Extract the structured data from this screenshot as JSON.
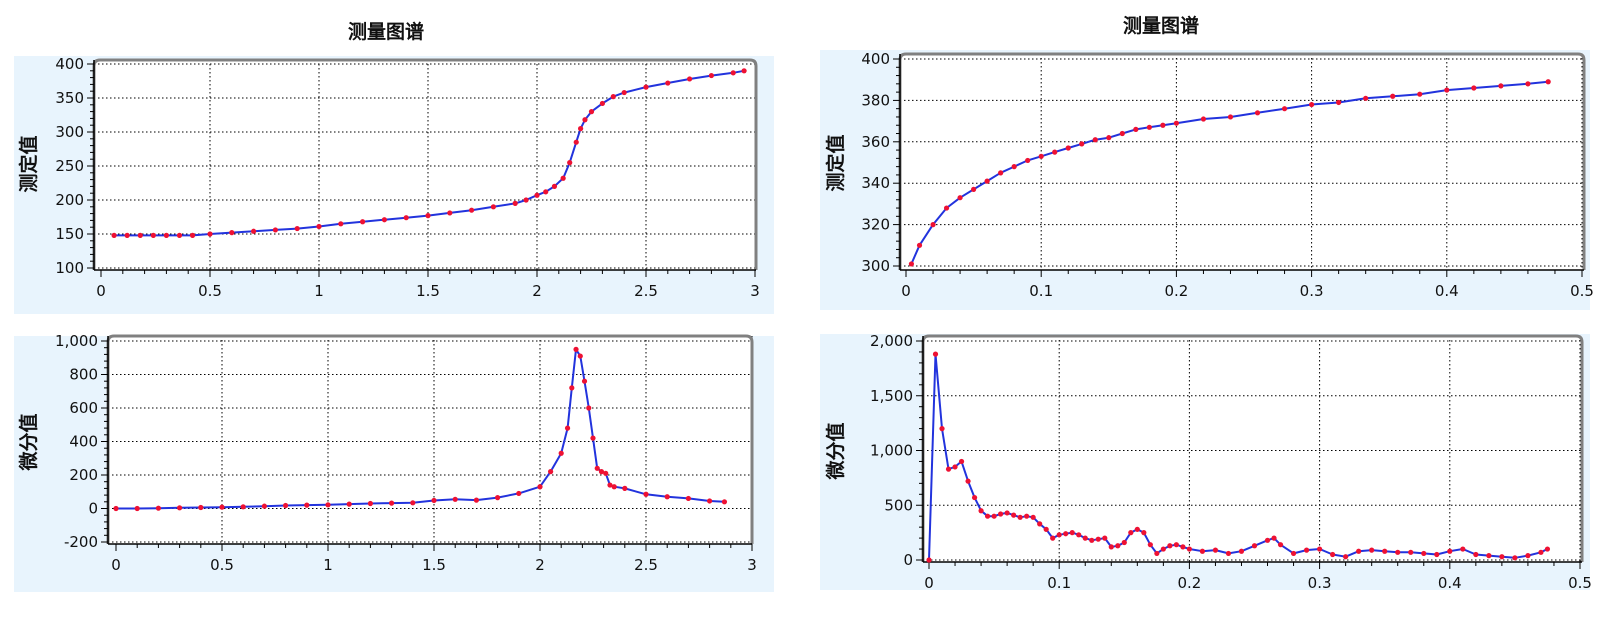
{
  "titles": {
    "left": "测量图谱",
    "right": "测量图谱"
  },
  "colors": {
    "line": "#2233dd",
    "marker": "#ee1133",
    "band": "#e8f4fd",
    "frame": "#808080",
    "grid": "#000000"
  },
  "chart_data": [
    {
      "id": "left-top",
      "type": "line",
      "ylabel": "测定值",
      "xlim": [
        0,
        3
      ],
      "ylim": [
        100,
        400
      ],
      "xticks": [
        0,
        0.5,
        1,
        1.5,
        2,
        2.5,
        3
      ],
      "xtick_labels": [
        "0",
        "0.5",
        "1",
        "1.5",
        "2",
        "2.5",
        "3"
      ],
      "yticks": [
        100,
        150,
        200,
        250,
        300,
        350,
        400
      ],
      "ytick_labels": [
        "100",
        "150",
        "200",
        "250",
        "300",
        "350",
        "400"
      ],
      "grid": true,
      "series": [
        {
          "x": [
            0.06,
            0.12,
            0.18,
            0.24,
            0.3,
            0.36,
            0.42,
            0.5,
            0.6,
            0.7,
            0.8,
            0.9,
            1.0,
            1.1,
            1.2,
            1.3,
            1.4,
            1.5,
            1.6,
            1.7,
            1.8,
            1.9,
            1.95,
            2.0,
            2.04,
            2.08,
            2.12,
            2.15,
            2.18,
            2.2,
            2.22,
            2.25,
            2.3,
            2.35,
            2.4,
            2.5,
            2.6,
            2.7,
            2.8,
            2.9,
            2.95
          ],
          "y": [
            148,
            148,
            148,
            148,
            148,
            148,
            148,
            150,
            152,
            154,
            156,
            158,
            161,
            165,
            168,
            171,
            174,
            177,
            181,
            185,
            190,
            195,
            200,
            207,
            212,
            220,
            232,
            255,
            285,
            305,
            318,
            330,
            342,
            352,
            358,
            366,
            372,
            378,
            383,
            387,
            390
          ]
        }
      ]
    },
    {
      "id": "left-bottom",
      "type": "line",
      "ylabel": "微分值",
      "xlim": [
        0,
        3
      ],
      "ylim": [
        -200,
        1000
      ],
      "xticks": [
        0,
        0.5,
        1,
        1.5,
        2,
        2.5,
        3
      ],
      "xtick_labels": [
        "0",
        "0.5",
        "1",
        "1.5",
        "2",
        "2.5",
        "3"
      ],
      "yticks": [
        -200,
        0,
        200,
        400,
        600,
        800,
        1000
      ],
      "ytick_labels": [
        "-200",
        "0",
        "200",
        "400",
        "600",
        "800",
        "1,000"
      ],
      "grid": true,
      "series": [
        {
          "x": [
            0.0,
            0.1,
            0.2,
            0.3,
            0.4,
            0.5,
            0.6,
            0.7,
            0.8,
            0.9,
            1.0,
            1.1,
            1.2,
            1.3,
            1.4,
            1.5,
            1.6,
            1.7,
            1.8,
            1.9,
            2.0,
            2.05,
            2.1,
            2.13,
            2.15,
            2.17,
            2.19,
            2.21,
            2.23,
            2.25,
            2.27,
            2.29,
            2.31,
            2.33,
            2.35,
            2.4,
            2.5,
            2.6,
            2.7,
            2.8,
            2.87
          ],
          "y": [
            0,
            0,
            2,
            4,
            6,
            8,
            10,
            14,
            18,
            20,
            22,
            26,
            30,
            32,
            34,
            48,
            55,
            50,
            65,
            90,
            130,
            220,
            330,
            480,
            720,
            950,
            910,
            760,
            600,
            420,
            240,
            220,
            210,
            140,
            130,
            120,
            85,
            70,
            60,
            45,
            40
          ]
        }
      ]
    },
    {
      "id": "right-top",
      "type": "line",
      "ylabel": "测定值",
      "xlim": [
        0,
        0.5
      ],
      "ylim": [
        300,
        400
      ],
      "xticks": [
        0,
        0.1,
        0.2,
        0.3,
        0.4,
        0.5
      ],
      "xtick_labels": [
        "0",
        "0.1",
        "0.2",
        "0.3",
        "0.4",
        "0.5"
      ],
      "yticks": [
        300,
        320,
        340,
        360,
        380,
        400
      ],
      "ytick_labels": [
        "300",
        "320",
        "340",
        "360",
        "380",
        "400"
      ],
      "grid": true,
      "series": [
        {
          "x": [
            0.004,
            0.01,
            0.02,
            0.03,
            0.04,
            0.05,
            0.06,
            0.07,
            0.08,
            0.09,
            0.1,
            0.11,
            0.12,
            0.13,
            0.14,
            0.15,
            0.16,
            0.17,
            0.18,
            0.19,
            0.2,
            0.22,
            0.24,
            0.26,
            0.28,
            0.3,
            0.32,
            0.34,
            0.36,
            0.38,
            0.4,
            0.42,
            0.44,
            0.46,
            0.475
          ],
          "y": [
            301,
            310,
            320,
            328,
            333,
            337,
            341,
            345,
            348,
            351,
            353,
            355,
            357,
            359,
            361,
            362,
            364,
            366,
            367,
            368,
            369,
            371,
            372,
            374,
            376,
            378,
            379,
            381,
            382,
            383,
            385,
            386,
            387,
            388,
            389
          ]
        }
      ]
    },
    {
      "id": "right-bottom",
      "type": "line",
      "ylabel": "微分值",
      "xlim": [
        0,
        0.5
      ],
      "ylim": [
        0,
        2000
      ],
      "xticks": [
        0,
        0.1,
        0.2,
        0.3,
        0.4,
        0.5
      ],
      "xtick_labels": [
        "0",
        "0.1",
        "0.2",
        "0.3",
        "0.4",
        "0.5"
      ],
      "yticks": [
        0,
        500,
        1000,
        1500,
        2000
      ],
      "ytick_labels": [
        "0",
        "500",
        "1,000",
        "1,500",
        "2,000"
      ],
      "grid": true,
      "series": [
        {
          "x": [
            0.0,
            0.005,
            0.01,
            0.015,
            0.02,
            0.025,
            0.03,
            0.035,
            0.04,
            0.045,
            0.05,
            0.055,
            0.06,
            0.065,
            0.07,
            0.075,
            0.08,
            0.085,
            0.09,
            0.095,
            0.1,
            0.105,
            0.11,
            0.115,
            0.12,
            0.125,
            0.13,
            0.135,
            0.14,
            0.145,
            0.15,
            0.155,
            0.16,
            0.165,
            0.17,
            0.175,
            0.18,
            0.185,
            0.19,
            0.195,
            0.2,
            0.21,
            0.22,
            0.23,
            0.24,
            0.25,
            0.26,
            0.265,
            0.27,
            0.28,
            0.29,
            0.3,
            0.31,
            0.32,
            0.33,
            0.34,
            0.35,
            0.36,
            0.37,
            0.38,
            0.39,
            0.4,
            0.41,
            0.42,
            0.43,
            0.44,
            0.45,
            0.46,
            0.47,
            0.475
          ],
          "y": [
            0,
            1880,
            1200,
            830,
            850,
            900,
            720,
            570,
            450,
            400,
            400,
            420,
            430,
            410,
            390,
            400,
            390,
            330,
            280,
            200,
            230,
            240,
            250,
            230,
            200,
            180,
            190,
            200,
            120,
            130,
            160,
            250,
            280,
            250,
            140,
            60,
            100,
            130,
            140,
            120,
            100,
            80,
            90,
            60,
            80,
            130,
            180,
            200,
            140,
            60,
            90,
            100,
            50,
            30,
            80,
            90,
            80,
            70,
            70,
            60,
            50,
            80,
            100,
            50,
            40,
            30,
            20,
            40,
            70,
            100
          ]
        }
      ]
    }
  ]
}
